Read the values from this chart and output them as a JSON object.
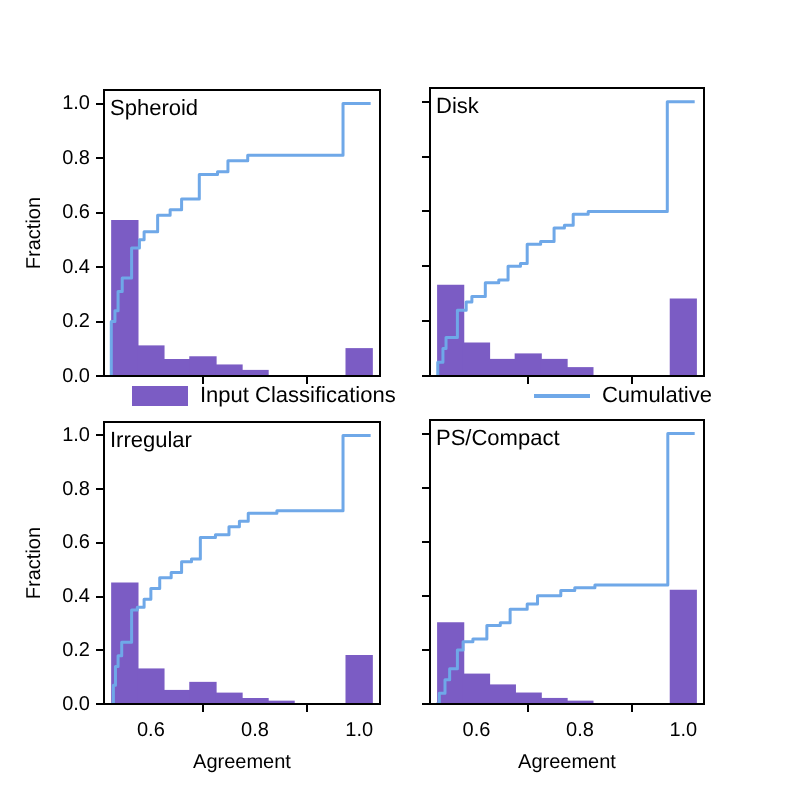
{
  "chart_data": [
    {
      "type": "histogram",
      "title": "Spheroid",
      "ylabel": "Fraction",
      "legend": "bottom",
      "tick_labels": "y",
      "xlim": [
        0.51,
        1.04
      ],
      "ylim": [
        0,
        1.05
      ],
      "xticks": [
        {
          "value": 0.6,
          "label": null
        },
        {
          "value": 0.8,
          "label": null
        },
        {
          "value": 1.0,
          "label": null
        }
      ],
      "yticks": [
        {
          "value": 0,
          "label": "0.0"
        },
        {
          "value": 0.2,
          "label": "0.2"
        },
        {
          "value": 0.4,
          "label": "0.4"
        },
        {
          "value": 0.6,
          "label": "0.6"
        },
        {
          "value": 0.8,
          "label": "0.8"
        },
        {
          "value": 1.0,
          "label": "1.0"
        }
      ],
      "bins": [
        0.525,
        0.575,
        0.625,
        0.675,
        0.725,
        0.775,
        0.825,
        0.875,
        0.925,
        0.975,
        1.025
      ],
      "series": [
        {
          "type": "histogram",
          "name": "Input Classifications",
          "color": "#7b5cc4",
          "values": [
            0.57,
            0.11,
            0.06,
            0.07,
            0.04,
            0.02,
            0,
            0,
            0,
            0.1
          ]
        },
        {
          "type": "step",
          "name": "Cumulative",
          "color": "#6fa8e8",
          "x": [
            0.524,
            0.524,
            0.531,
            0.537,
            0.545,
            0.563,
            0.578,
            0.587,
            0.613,
            0.637,
            0.659,
            0.693,
            0.728,
            0.748,
            0.786,
            0.969,
            1.022
          ],
          "values": [
            0,
            0.2,
            0.24,
            0.31,
            0.36,
            0.47,
            0.5,
            0.53,
            0.59,
            0.61,
            0.65,
            0.74,
            0.75,
            0.79,
            0.81,
            1.0,
            1.0
          ]
        }
      ]
    },
    {
      "type": "histogram",
      "title": "Disk",
      "tick_labels": false,
      "xlim": [
        0.51,
        1.04
      ],
      "ylim": [
        0,
        1.05
      ],
      "xticks": [
        {
          "value": 0.6,
          "label": null
        },
        {
          "value": 0.8,
          "label": null
        },
        {
          "value": 1.0,
          "label": null
        }
      ],
      "yticks": [
        {
          "value": 0,
          "label": null
        },
        {
          "value": 0.2,
          "label": null
        },
        {
          "value": 0.4,
          "label": null
        },
        {
          "value": 0.6,
          "label": null
        },
        {
          "value": 0.8,
          "label": null
        },
        {
          "value": 1.0,
          "label": null
        }
      ],
      "bins": [
        0.525,
        0.575,
        0.625,
        0.675,
        0.725,
        0.775,
        0.825,
        0.875,
        0.925,
        0.975,
        1.025
      ],
      "series": [
        {
          "type": "histogram",
          "color": "#7b5cc4",
          "values": [
            0.33,
            0.12,
            0.06,
            0.08,
            0.06,
            0.03,
            0,
            0,
            0,
            0.28
          ]
        },
        {
          "type": "step",
          "color": "#6fa8e8",
          "x": [
            0.522,
            0.525,
            0.535,
            0.541,
            0.563,
            0.58,
            0.591,
            0.617,
            0.643,
            0.661,
            0.685,
            0.698,
            0.724,
            0.75,
            0.77,
            0.787,
            0.816,
            0.969,
            1.022
          ],
          "values": [
            0,
            0.05,
            0.1,
            0.14,
            0.24,
            0.27,
            0.29,
            0.34,
            0.35,
            0.4,
            0.41,
            0.48,
            0.49,
            0.54,
            0.55,
            0.59,
            0.6,
            1.0,
            1.0
          ]
        }
      ]
    },
    {
      "type": "histogram",
      "title": "Irregular",
      "xlabel": "Agreement",
      "ylabel": "Fraction",
      "xlim": [
        0.51,
        1.04
      ],
      "ylim": [
        0,
        1.05
      ],
      "xticks": [
        {
          "value": 0.6,
          "label": "0.6"
        },
        {
          "value": 0.8,
          "label": "0.8"
        },
        {
          "value": 1.0,
          "label": "1.0"
        }
      ],
      "yticks": [
        {
          "value": 0,
          "label": "0.0"
        },
        {
          "value": 0.2,
          "label": "0.2"
        },
        {
          "value": 0.4,
          "label": "0.4"
        },
        {
          "value": 0.6,
          "label": "0.6"
        },
        {
          "value": 0.8,
          "label": "0.8"
        },
        {
          "value": 1.0,
          "label": "1.0"
        }
      ],
      "bins": [
        0.525,
        0.575,
        0.625,
        0.675,
        0.725,
        0.775,
        0.825,
        0.875,
        0.925,
        0.975,
        1.025
      ],
      "series": [
        {
          "type": "histogram",
          "color": "#7b5cc4",
          "values": [
            0.45,
            0.13,
            0.05,
            0.08,
            0.04,
            0.02,
            0.01,
            0,
            0,
            0.18
          ]
        },
        {
          "type": "step",
          "color": "#6fa8e8",
          "x": [
            0.524,
            0.528,
            0.532,
            0.537,
            0.544,
            0.563,
            0.574,
            0.587,
            0.6,
            0.617,
            0.639,
            0.659,
            0.678,
            0.695,
            0.724,
            0.75,
            0.77,
            0.787,
            0.842,
            0.969,
            1.022
          ],
          "values": [
            0,
            0.07,
            0.14,
            0.18,
            0.23,
            0.35,
            0.36,
            0.39,
            0.43,
            0.47,
            0.49,
            0.53,
            0.54,
            0.62,
            0.63,
            0.66,
            0.68,
            0.71,
            0.72,
            1.0,
            1.0
          ]
        }
      ]
    },
    {
      "type": "histogram",
      "title": "PS/Compact",
      "xlabel": "Agreement",
      "tick_labels": "x",
      "xlim": [
        0.51,
        1.04
      ],
      "ylim": [
        0,
        1.05
      ],
      "xticks": [
        {
          "value": 0.6,
          "label": "0.6"
        },
        {
          "value": 0.8,
          "label": "0.8"
        },
        {
          "value": 1.0,
          "label": "1.0"
        }
      ],
      "yticks": [
        {
          "value": 0,
          "label": null
        },
        {
          "value": 0.2,
          "label": null
        },
        {
          "value": 0.4,
          "label": null
        },
        {
          "value": 0.6,
          "label": null
        },
        {
          "value": 0.8,
          "label": null
        },
        {
          "value": 1.0,
          "label": null
        }
      ],
      "bins": [
        0.525,
        0.575,
        0.625,
        0.675,
        0.725,
        0.775,
        0.825,
        0.875,
        0.925,
        0.975,
        1.025
      ],
      "series": [
        {
          "type": "histogram",
          "color": "#7b5cc4",
          "values": [
            0.3,
            0.11,
            0.07,
            0.04,
            0.02,
            0.01,
            0,
            0,
            0,
            0.42
          ]
        },
        {
          "type": "step",
          "color": "#6fa8e8",
          "x": [
            0.522,
            0.528,
            0.539,
            0.548,
            0.563,
            0.574,
            0.593,
            0.62,
            0.646,
            0.665,
            0.698,
            0.718,
            0.763,
            0.79,
            0.829,
            0.97,
            1.022
          ],
          "values": [
            0,
            0.04,
            0.09,
            0.13,
            0.2,
            0.23,
            0.24,
            0.29,
            0.3,
            0.35,
            0.37,
            0.4,
            0.42,
            0.43,
            0.44,
            1.0,
            1.0
          ]
        }
      ]
    }
  ]
}
